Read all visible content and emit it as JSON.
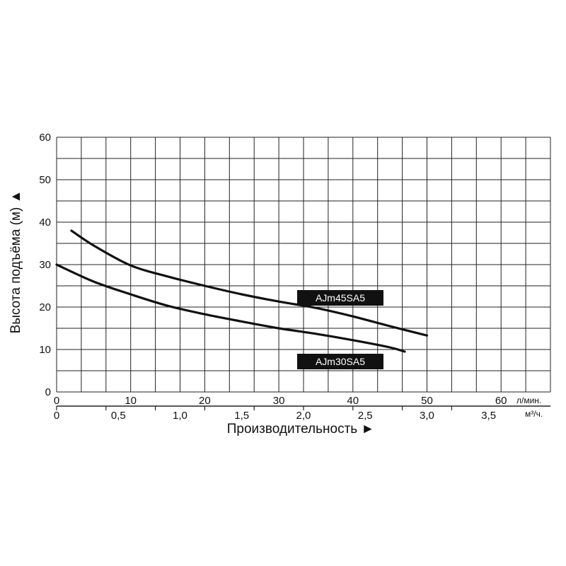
{
  "chart_data": {
    "type": "line",
    "title": "",
    "ylabel": "Высота подъёма (м) ▲",
    "xlabel": "Производительность ►",
    "ylim": [
      0,
      60
    ],
    "xlim": [
      0,
      66.67
    ],
    "y_ticks": [
      "0",
      "10",
      "20",
      "30",
      "40",
      "50",
      "60"
    ],
    "x_ticks_primary": [
      "0",
      "10",
      "20",
      "30",
      "40",
      "50",
      "60"
    ],
    "x_unit_primary": "л/мин.",
    "x_ticks_secondary": [
      "0",
      "0,5",
      "1,0",
      "1,5",
      "2,0",
      "2,5",
      "3,0",
      "3,5"
    ],
    "x_unit_secondary": "м³/ч.",
    "grid": true,
    "series": [
      {
        "name": "AJm45SA5",
        "x": [
          2,
          5,
          10,
          15,
          20,
          25,
          30,
          35,
          40,
          45,
          50
        ],
        "y": [
          38,
          34.5,
          29.8,
          27.2,
          25,
          23,
          21.3,
          19.8,
          17.8,
          15.5,
          13.3
        ]
      },
      {
        "name": "AJm30SA5",
        "x": [
          0,
          5,
          10,
          15,
          20,
          25,
          30,
          35,
          40,
          45,
          47
        ],
        "y": [
          30,
          26,
          23,
          20.3,
          18.3,
          16.6,
          15,
          13.7,
          12.2,
          10.5,
          9.5
        ]
      }
    ],
    "colors": {
      "line": "#111111",
      "grid": "#222222",
      "label_bg": "#111111",
      "label_text": "#ffffff"
    }
  }
}
